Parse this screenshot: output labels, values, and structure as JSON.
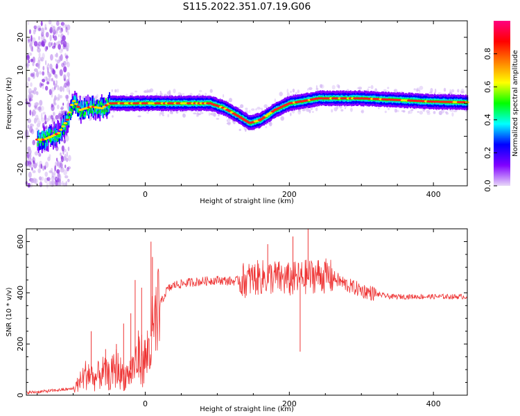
{
  "title": "S115.2022.351.07.19.G06",
  "chart_data": [
    {
      "type": "heatmap",
      "xlabel": "Height of straight line (km)",
      "ylabel": "Frequency (Hz)",
      "xlim": [
        -165,
        447
      ],
      "ylim": [
        -25,
        25
      ],
      "xticks": [
        0,
        200,
        400
      ],
      "yticks": [
        -20,
        -10,
        0,
        10,
        20
      ],
      "colorbar": {
        "label": "Normalized spectral amplitude",
        "range": [
          0,
          1
        ],
        "ticks": [
          0.0,
          0.2,
          0.4,
          0.6,
          0.8
        ],
        "colormap": [
          "#e8d8f8",
          "#8000ff",
          "#0000ff",
          "#00ffff",
          "#00ff00",
          "#ffff00",
          "#ff8000",
          "#ff0000",
          "#ff0080"
        ]
      },
      "ridge": {
        "x": [
          -150,
          -140,
          -120,
          -108,
          -100,
          -90,
          -75,
          -60,
          -50,
          0,
          50,
          90,
          110,
          130,
          145,
          160,
          180,
          200,
          215,
          240,
          300,
          350,
          400,
          447
        ],
        "y": [
          -11,
          -11,
          -9,
          -5,
          1,
          -2,
          -1,
          -1.5,
          0,
          0,
          0,
          0,
          -1.5,
          -4,
          -6,
          -5,
          -2,
          0,
          0.5,
          1.5,
          1.5,
          1,
          0.5,
          0.3
        ]
      }
    },
    {
      "type": "line",
      "xlabel": "Height of straight line (km)",
      "ylabel": "SNR (10 * v/v)",
      "xlim": [
        -165,
        447
      ],
      "ylim": [
        0,
        650
      ],
      "xticks": [
        0,
        200,
        400
      ],
      "yticks": [
        0,
        200,
        400,
        600
      ],
      "color": "#ee3333",
      "envelope": {
        "x": [
          -165,
          -140,
          -120,
          -100,
          -90,
          -80,
          -70,
          -60,
          -50,
          -40,
          -30,
          -20,
          -10,
          0,
          10,
          20,
          30,
          40,
          60,
          80,
          100,
          120,
          140,
          160,
          180,
          200,
          220,
          240,
          260,
          280,
          300,
          320,
          340,
          360,
          380,
          400,
          420,
          447
        ],
        "y": [
          10,
          15,
          20,
          25,
          60,
          100,
          70,
          100,
          80,
          120,
          80,
          100,
          160,
          150,
          250,
          350,
          410,
          430,
          440,
          445,
          450,
          445,
          450,
          460,
          460,
          450,
          460,
          470,
          460,
          430,
          410,
          395,
          385,
          385,
          385,
          385,
          385,
          385
        ]
      },
      "spikes": [
        {
          "x": -75,
          "y": 250
        },
        {
          "x": -55,
          "y": 180
        },
        {
          "x": -40,
          "y": 200
        },
        {
          "x": -30,
          "y": 280
        },
        {
          "x": -20,
          "y": 320
        },
        {
          "x": -14,
          "y": 450
        },
        {
          "x": -5,
          "y": 420
        },
        {
          "x": 8,
          "y": 600
        },
        {
          "x": 10,
          "y": 540
        },
        {
          "x": 170,
          "y": 590
        },
        {
          "x": 205,
          "y": 620
        },
        {
          "x": 226,
          "y": 650
        },
        {
          "x": 215,
          "y": 170
        }
      ]
    }
  ]
}
